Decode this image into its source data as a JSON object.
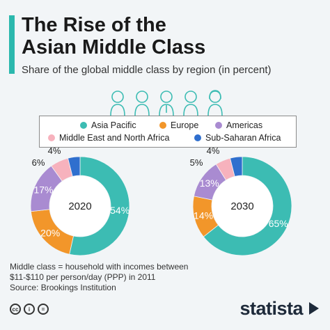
{
  "header": {
    "title_line1": "The Rise of the",
    "title_line2": "Asian Middle Class",
    "subtitle": "Share of the global middle class by region (in percent)"
  },
  "colors": {
    "accent": "#2bb8ad",
    "asia_pacific": "#3cbcb3",
    "europe": "#f2962a",
    "americas": "#a98bd1",
    "mena": "#f7b2bd",
    "ssa": "#2f6fce"
  },
  "chart_data": [
    {
      "type": "pie",
      "label": "2020",
      "series": [
        {
          "name": "Asia Pacific",
          "value": 54,
          "label": "54%"
        },
        {
          "name": "Europe",
          "value": 20,
          "label": "20%"
        },
        {
          "name": "Americas",
          "value": 17,
          "label": "17%"
        },
        {
          "name": "Middle East and North Africa",
          "value": 6,
          "label": "6%"
        },
        {
          "name": "Sub-Saharan Africa",
          "value": 4,
          "label": "4%"
        }
      ]
    },
    {
      "type": "pie",
      "label": "2030",
      "series": [
        {
          "name": "Asia Pacific",
          "value": 65,
          "label": "65%"
        },
        {
          "name": "Europe",
          "value": 14,
          "label": "14%"
        },
        {
          "name": "Americas",
          "value": 13,
          "label": "13%"
        },
        {
          "name": "Middle East and North Africa",
          "value": 5,
          "label": "5%"
        },
        {
          "name": "Sub-Saharan Africa",
          "value": 4,
          "label": "4%"
        }
      ]
    }
  ],
  "legend": [
    {
      "label": "Asia Pacific",
      "color": "#3cbcb3"
    },
    {
      "label": "Europe",
      "color": "#f2962a"
    },
    {
      "label": "Americas",
      "color": "#a98bd1"
    },
    {
      "label": "Middle East and North Africa",
      "color": "#f7b2bd"
    },
    {
      "label": "Sub-Saharan Africa",
      "color": "#2f6fce"
    }
  ],
  "notes": {
    "line1": "Middle class = household with incomes between",
    "line2": "$11-$110 per person/day (PPP) in 2011",
    "source": "Source: Brookings Institution"
  },
  "footer": {
    "icons": [
      "creative-commons-icon",
      "attribution-icon",
      "no-derivatives-icon"
    ],
    "brand": "statista"
  }
}
